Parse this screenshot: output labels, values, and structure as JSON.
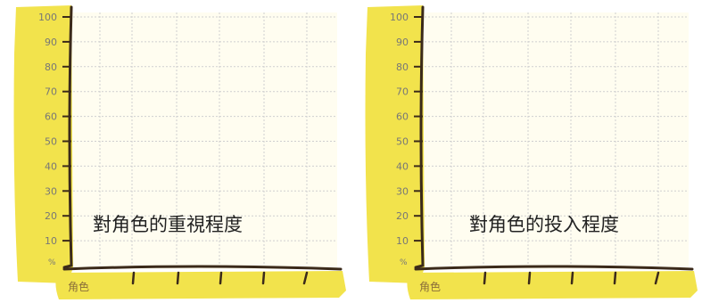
{
  "chart_data": [
    {
      "type": "line",
      "title": "對角色的重視程度",
      "xlabel": "角色",
      "ylabel": "%",
      "ylim": [
        0,
        100
      ],
      "yticks": [
        "100",
        "90",
        "80",
        "70",
        "60",
        "50",
        "40",
        "30",
        "20",
        "10"
      ],
      "grid": true,
      "series": []
    },
    {
      "type": "line",
      "title": "對角色的投入程度",
      "xlabel": "角色",
      "ylabel": "%",
      "ylim": [
        0,
        100
      ],
      "yticks": [
        "100",
        "90",
        "80",
        "70",
        "60",
        "50",
        "40",
        "30",
        "20",
        "10"
      ],
      "grid": true,
      "series": []
    }
  ],
  "colors": {
    "axis_band": "#f2e34c",
    "plot_bg": "#fffdf0",
    "grid": "#cfcfcf",
    "axis_line": "#3b2a1a",
    "tick_text": "#777777"
  }
}
